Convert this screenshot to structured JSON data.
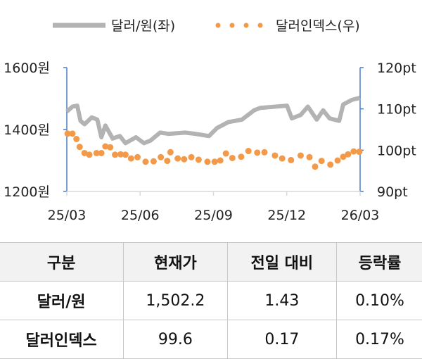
{
  "chart_data": {
    "type": "line",
    "legend": {
      "placement": "top",
      "entries": [
        "달러/원(좌)",
        "달러인덱스(우)"
      ]
    },
    "x_ticks": [
      "25/03",
      "25/06",
      "25/09",
      "25/12",
      "26/03"
    ],
    "y_left": {
      "ticks": [
        "1200원",
        "1400원",
        "1600원"
      ],
      "range": [
        1200,
        1600
      ]
    },
    "y_right": {
      "ticks": [
        "90pt",
        "100pt",
        "110pt",
        "120pt"
      ],
      "range": [
        90,
        120
      ]
    },
    "x_range": [
      "2025-03-01",
      "2026-03-01"
    ],
    "colors": {
      "usdkrw": "#b3b3b3",
      "dxy": "#f39a4a",
      "axis": "#4a7fc1"
    },
    "series": [
      {
        "name": "달러/원(좌)",
        "axis": "left",
        "style": "line",
        "x": [
          "2025-03-01",
          "2025-03-08",
          "2025-03-14",
          "2025-03-18",
          "2025-03-23",
          "2025-04-01",
          "2025-04-08",
          "2025-04-13",
          "2025-04-18",
          "2025-04-27",
          "2025-05-06",
          "2025-05-13",
          "2025-05-26",
          "2025-06-05",
          "2025-06-13",
          "2025-06-25",
          "2025-07-06",
          "2025-07-26",
          "2025-08-08",
          "2025-08-25",
          "2025-09-04",
          "2025-09-18",
          "2025-10-05",
          "2025-10-20",
          "2025-10-28",
          "2025-11-16",
          "2025-11-30",
          "2025-12-06",
          "2025-12-17",
          "2025-12-26",
          "2026-01-06",
          "2026-01-14",
          "2026-01-22",
          "2026-02-03",
          "2026-02-08",
          "2026-02-19",
          "2026-03-01"
        ],
        "values": [
          1458,
          1474,
          1477,
          1428,
          1417,
          1439,
          1432,
          1375,
          1413,
          1371,
          1379,
          1356,
          1375,
          1356,
          1364,
          1390,
          1386,
          1390,
          1386,
          1379,
          1405,
          1424,
          1432,
          1462,
          1470,
          1474,
          1477,
          1436,
          1447,
          1474,
          1432,
          1462,
          1436,
          1428,
          1481,
          1496,
          1502.2
        ]
      },
      {
        "name": "달러인덱스(우)",
        "axis": "right",
        "style": "dots",
        "x": [
          "2025-03-02",
          "2025-03-08",
          "2025-03-13",
          "2025-03-17",
          "2025-03-23",
          "2025-03-29",
          "2025-04-07",
          "2025-04-13",
          "2025-04-18",
          "2025-04-24",
          "2025-04-30",
          "2025-05-07",
          "2025-05-13",
          "2025-05-20",
          "2025-05-28",
          "2025-06-07",
          "2025-06-17",
          "2025-06-26",
          "2025-07-04",
          "2025-07-08",
          "2025-07-17",
          "2025-07-25",
          "2025-08-03",
          "2025-08-12",
          "2025-08-23",
          "2025-09-01",
          "2025-09-08",
          "2025-09-15",
          "2025-09-23",
          "2025-10-04",
          "2025-10-13",
          "2025-10-24",
          "2025-11-02",
          "2025-11-15",
          "2025-11-24",
          "2025-12-05",
          "2025-12-17",
          "2025-12-28",
          "2026-01-04",
          "2026-01-12",
          "2026-01-23",
          "2026-02-01",
          "2026-02-08",
          "2026-02-14",
          "2026-02-21",
          "2026-02-28"
        ],
        "values": [
          104.0,
          104.0,
          102.7,
          100.8,
          99.3,
          98.9,
          99.3,
          99.3,
          100.9,
          100.7,
          98.9,
          99.0,
          98.9,
          98.0,
          98.3,
          97.2,
          97.3,
          98.3,
          97.4,
          99.5,
          98.0,
          97.8,
          98.3,
          97.7,
          97.2,
          97.2,
          97.5,
          99.2,
          98.1,
          98.4,
          99.8,
          99.4,
          99.5,
          98.7,
          98.0,
          97.6,
          98.7,
          98.3,
          96.0,
          97.4,
          96.5,
          97.5,
          98.4,
          99.0,
          99.7,
          99.6
        ]
      }
    ]
  },
  "table": {
    "headers": [
      "구분",
      "현재가",
      "전일 대비",
      "등락률"
    ],
    "rows": [
      [
        "달러/원",
        "1,502.2",
        "1.43",
        "0.10%"
      ],
      [
        "달러인덱스",
        "99.6",
        "0.17",
        "0.17%"
      ]
    ]
  }
}
